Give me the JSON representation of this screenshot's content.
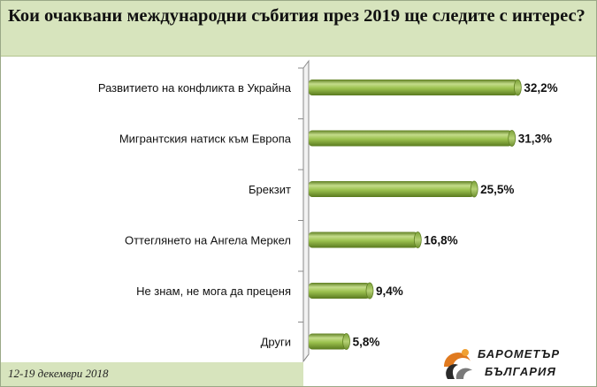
{
  "title": "Кои очаквани международни събития през 2019 ще следите с интерес?",
  "footer": {
    "date": "12-19 декември 2018"
  },
  "logo": {
    "line1": "БАРОМЕТЪР",
    "line2": "БЪЛГАРИЯ"
  },
  "colors": {
    "header_bg": "#d7e4bd",
    "bar": "#8fb443",
    "bar_dark": "#5f7f22",
    "bar_light": "#c4dc8a"
  },
  "chart_data": {
    "type": "bar",
    "orientation": "horizontal",
    "categories": [
      "Развитието на конфликта в Украйна",
      "Мигрантския натиск към Европа",
      "Брекзит",
      "Оттеглянето на Ангела Меркел",
      "Не знам, не мога да преценя",
      "Други"
    ],
    "values": [
      32.2,
      31.3,
      25.5,
      16.8,
      9.4,
      5.8
    ],
    "value_labels": [
      "32,2%",
      "31,3%",
      "25,5%",
      "16,8%",
      "9,4%",
      "5,8%"
    ],
    "xlim": [
      0,
      35
    ],
    "grid": false,
    "legend": "none"
  }
}
